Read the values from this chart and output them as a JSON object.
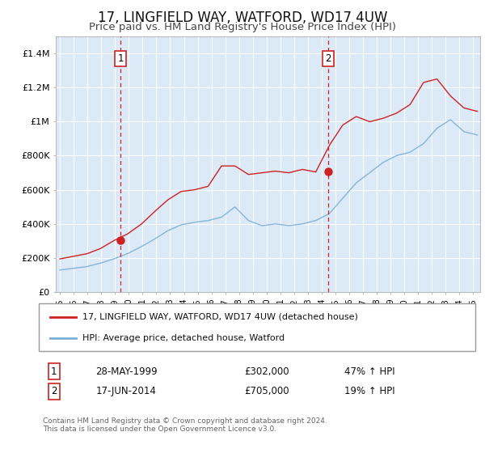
{
  "title": "17, LINGFIELD WAY, WATFORD, WD17 4UW",
  "subtitle": "Price paid vs. HM Land Registry's House Price Index (HPI)",
  "title_fontsize": 12,
  "subtitle_fontsize": 9.5,
  "ylim": [
    0,
    1500000
  ],
  "yticks": [
    0,
    200000,
    400000,
    600000,
    800000,
    1000000,
    1200000,
    1400000
  ],
  "ytick_labels": [
    "£0",
    "£200K",
    "£400K",
    "£600K",
    "£800K",
    "£1M",
    "£1.2M",
    "£1.4M"
  ],
  "xlim_start": 1994.7,
  "xlim_end": 2025.5,
  "fig_bg_color": "#ffffff",
  "plot_bg_color": "#dce9f7",
  "grid_color": "#ffffff",
  "sale1_date": 1999.4,
  "sale1_price": 302000,
  "sale2_date": 2014.46,
  "sale2_price": 705000,
  "hpi_color": "#7bafd4",
  "price_color": "#cc2222",
  "sale_marker_color": "#cc2222",
  "vline_color": "#cc2222",
  "legend_label_price": "17, LINGFIELD WAY, WATFORD, WD17 4UW (detached house)",
  "legend_label_hpi": "HPI: Average price, detached house, Watford",
  "copyright_text": "Contains HM Land Registry data © Crown copyright and database right 2024.\nThis data is licensed under the Open Government Licence v3.0.",
  "hpi_key_values": [
    130000,
    140000,
    150000,
    170000,
    195000,
    225000,
    265000,
    310000,
    360000,
    395000,
    410000,
    420000,
    440000,
    500000,
    420000,
    390000,
    400000,
    390000,
    400000,
    420000,
    460000,
    550000,
    640000,
    700000,
    760000,
    800000,
    820000,
    870000,
    960000,
    1010000,
    940000,
    920000
  ],
  "red_key_values": [
    195000,
    210000,
    225000,
    255000,
    302000,
    340000,
    395000,
    470000,
    540000,
    590000,
    600000,
    620000,
    740000,
    740000,
    690000,
    700000,
    710000,
    700000,
    720000,
    705000,
    860000,
    980000,
    1030000,
    1000000,
    1020000,
    1050000,
    1100000,
    1230000,
    1250000,
    1150000,
    1080000,
    1060000
  ]
}
